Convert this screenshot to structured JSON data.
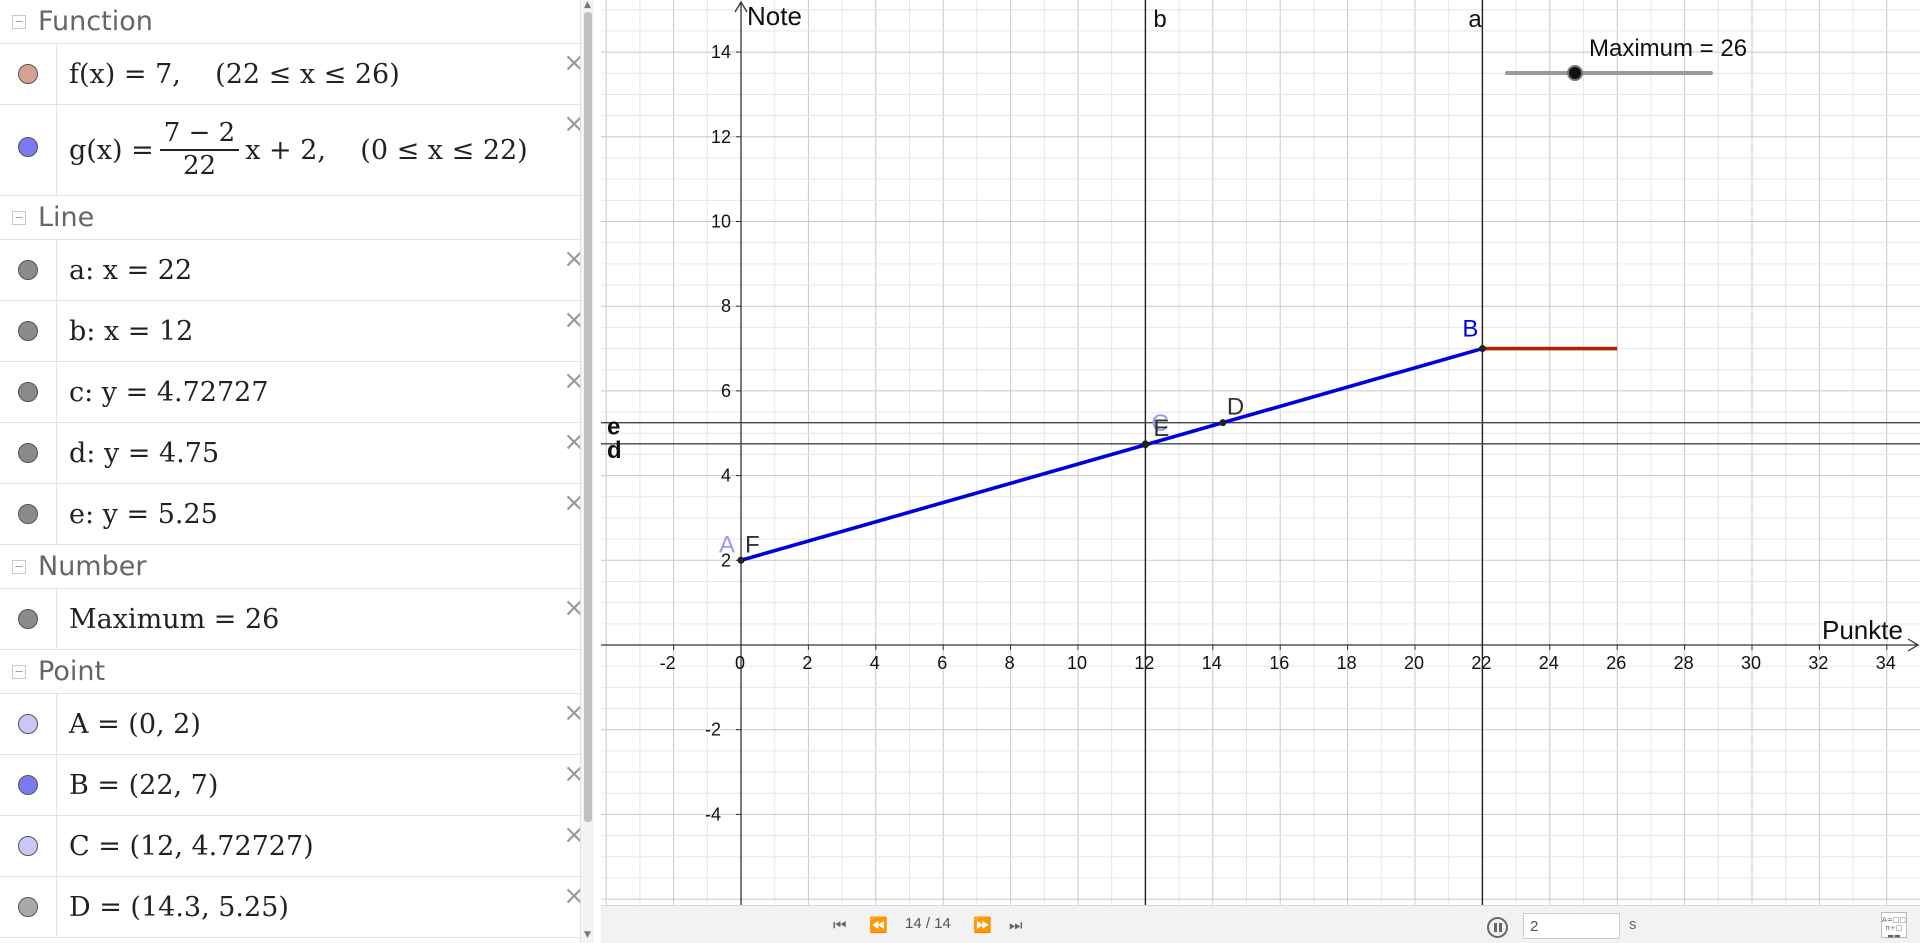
{
  "algebra": {
    "groups": [
      {
        "label": "Function",
        "rows": [
          {
            "color": "#d4a195",
            "text": "f(x) = 7,    (22 ≤ x ≤ 26)"
          },
          {
            "color": "#7b7bf0",
            "pre": "g(x) =",
            "frac_num": "7 − 2",
            "frac_den": "22",
            "post": "x + 2,    (0 ≤ x ≤ 22)"
          }
        ]
      },
      {
        "label": "Line",
        "rows": [
          {
            "color": "#8a8a8a",
            "text": "a: x = 22"
          },
          {
            "color": "#8a8a8a",
            "text": "b: x = 12"
          },
          {
            "color": "#8a8a8a",
            "text": "c: y = 4.72727"
          },
          {
            "color": "#8a8a8a",
            "text": "d: y = 4.75"
          },
          {
            "color": "#8a8a8a",
            "text": "e: y = 5.25"
          }
        ]
      },
      {
        "label": "Number",
        "rows": [
          {
            "color": "#8a8a8a",
            "text": "Maximum = 26"
          }
        ]
      },
      {
        "label": "Point",
        "rows": [
          {
            "color": "#c8c8f7",
            "text": "A = (0, 2)"
          },
          {
            "color": "#7b7bf0",
            "text": "B = (22, 7)"
          },
          {
            "color": "#c8c8f7",
            "text": "C = (12, 4.72727)"
          },
          {
            "color": "#a9a9a9",
            "text": "D = (14.3, 5.25)"
          }
        ]
      }
    ],
    "close_glyph": "×"
  },
  "graphics": {
    "x_axis_label": "Punkte",
    "y_axis_label": "Note",
    "x_ticks": [
      -2,
      0,
      2,
      4,
      6,
      8,
      10,
      12,
      14,
      16,
      18,
      20,
      22,
      24,
      26,
      28,
      30,
      32,
      34
    ],
    "y_ticks": [
      -4,
      -2,
      2,
      4,
      6,
      8,
      10,
      12,
      14
    ],
    "vertical_lines": [
      {
        "name": "b",
        "x": 12
      },
      {
        "name": "a",
        "x": 22
      }
    ],
    "horizontal_lines": [
      {
        "name": "d",
        "y": 4.75
      },
      {
        "name": "e",
        "y": 5.25
      }
    ],
    "segment_g": {
      "from": [
        0,
        2
      ],
      "to": [
        22,
        7
      ],
      "color": "#0000dd"
    },
    "segment_f": {
      "from": [
        22,
        7
      ],
      "to": [
        26,
        7
      ],
      "color": "#b22200"
    },
    "points": [
      {
        "name": "A",
        "x": 0,
        "y": 2,
        "color": "#9a9af0"
      },
      {
        "name": "F",
        "x": 0,
        "y": 2,
        "color": "#333333"
      },
      {
        "name": "B",
        "x": 22,
        "y": 7,
        "color": "#0000dd"
      },
      {
        "name": "C",
        "x": 12,
        "y": 4.72727,
        "color": "#9a9af0"
      },
      {
        "name": "E",
        "x": 12,
        "y": 4.75,
        "color": "#333333"
      },
      {
        "name": "D",
        "x": 14.3,
        "y": 5.25,
        "color": "#333333"
      }
    ],
    "slider": {
      "label": "Maximum = 26",
      "min": 22,
      "max": 34,
      "value": 26
    }
  },
  "playbar": {
    "counter": "14 / 14",
    "speed_value": "2",
    "speed_unit": "s"
  }
}
